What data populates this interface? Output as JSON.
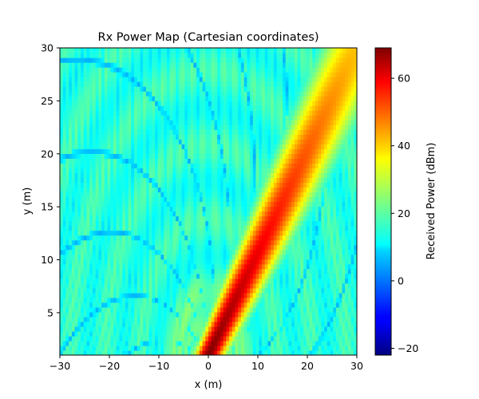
{
  "chart_data": {
    "type": "heatmap",
    "title": "Rx Power Map (Cartesian coordinates)",
    "xlabel": "x (m)",
    "ylabel": "y (m)",
    "xlim": [
      -30,
      30
    ],
    "ylim": [
      1,
      30
    ],
    "x_ticks": [
      -30,
      -20,
      -10,
      0,
      10,
      20,
      30
    ],
    "y_ticks": [
      5,
      10,
      15,
      20,
      25,
      30
    ],
    "colorbar": {
      "label": "Received Power (dBm)",
      "colormap": "jet",
      "range": [
        -22,
        69
      ],
      "ticks": [
        -20,
        0,
        20,
        40,
        60
      ]
    },
    "features": {
      "main_beam": {
        "from": [
          0,
          1
        ],
        "to": [
          30,
          30
        ],
        "peak_dbm": 69,
        "falloff_dbm": 40
      },
      "background_dbm": 18,
      "fringe_minima_dbm": 5
    }
  }
}
